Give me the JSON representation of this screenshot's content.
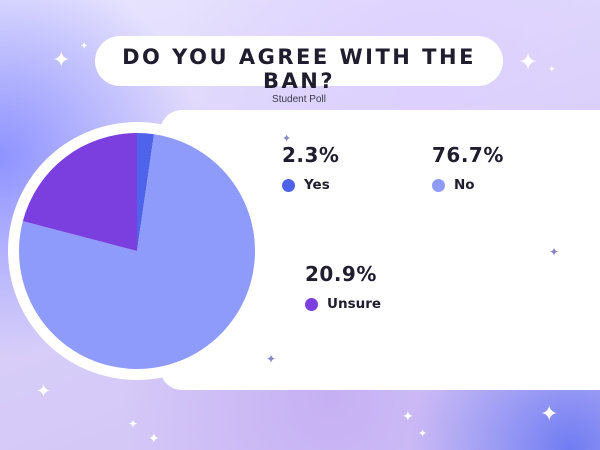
{
  "chart_data": {
    "type": "pie",
    "title": "DO YOU AGREE WITH THE BAN?",
    "subtitle": "Student Poll",
    "slices": [
      {
        "label": "Yes",
        "value": 2.3,
        "display": "2.3%",
        "color": "#4f63ea"
      },
      {
        "label": "No",
        "value": 76.7,
        "display": "76.7%",
        "color": "#8f9bfb"
      },
      {
        "label": "Unsure",
        "value": 20.9,
        "display": "20.9%",
        "color": "#7b3fe0"
      }
    ]
  }
}
